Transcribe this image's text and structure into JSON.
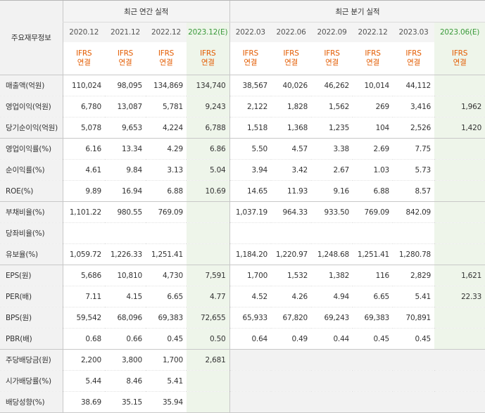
{
  "header": {
    "corner_label": "주요재무정보",
    "annual_group": "최근 연간 실적",
    "quarterly_group": "최근 분기 실적",
    "basis_line1": "IFRS",
    "basis_line2": "연결"
  },
  "periods": [
    {
      "label": "2020.12",
      "estimate": false
    },
    {
      "label": "2021.12",
      "estimate": false
    },
    {
      "label": "2022.12",
      "estimate": false
    },
    {
      "label": "2023.12(E)",
      "estimate": true
    },
    {
      "label": "2022.03",
      "estimate": false
    },
    {
      "label": "2022.06",
      "estimate": false
    },
    {
      "label": "2022.09",
      "estimate": false
    },
    {
      "label": "2022.12",
      "estimate": false
    },
    {
      "label": "2023.03",
      "estimate": false
    },
    {
      "label": "2023.06(E)",
      "estimate": true
    }
  ],
  "rows": [
    {
      "label": "매출액(억원)",
      "values": [
        "110,024",
        "98,095",
        "134,869",
        "134,740",
        "38,567",
        "40,026",
        "46,262",
        "10,014",
        "44,112",
        ""
      ]
    },
    {
      "label": "영업이익(억원)",
      "values": [
        "6,780",
        "13,087",
        "5,781",
        "9,243",
        "2,122",
        "1,828",
        "1,562",
        "269",
        "3,416",
        "1,962"
      ]
    },
    {
      "label": "당기순이익(억원)",
      "values": [
        "5,078",
        "9,653",
        "4,224",
        "6,788",
        "1,518",
        "1,368",
        "1,235",
        "104",
        "2,526",
        "1,420"
      ]
    },
    {
      "label": "영업이익률(%)",
      "values": [
        "6.16",
        "13.34",
        "4.29",
        "6.86",
        "5.50",
        "4.57",
        "3.38",
        "2.69",
        "7.75",
        ""
      ]
    },
    {
      "label": "순이익률(%)",
      "values": [
        "4.61",
        "9.84",
        "3.13",
        "5.04",
        "3.94",
        "3.42",
        "2.67",
        "1.03",
        "5.73",
        ""
      ]
    },
    {
      "label": "ROE(%)",
      "values": [
        "9.89",
        "16.94",
        "6.88",
        "10.69",
        "14.65",
        "11.93",
        "9.16",
        "6.88",
        "8.57",
        ""
      ]
    },
    {
      "label": "부채비율(%)",
      "values": [
        "1,101.22",
        "980.55",
        "769.09",
        "",
        "1,037.19",
        "964.33",
        "933.50",
        "769.09",
        "842.09",
        ""
      ]
    },
    {
      "label": "당좌비율(%)",
      "values": [
        "",
        "",
        "",
        "",
        "",
        "",
        "",
        "",
        "",
        ""
      ]
    },
    {
      "label": "유보율(%)",
      "values": [
        "1,059.72",
        "1,226.33",
        "1,251.41",
        "",
        "1,184.20",
        "1,220.97",
        "1,248.68",
        "1,251.41",
        "1,280.78",
        ""
      ]
    },
    {
      "label": "EPS(원)",
      "values": [
        "5,686",
        "10,810",
        "4,730",
        "7,591",
        "1,700",
        "1,532",
        "1,382",
        "116",
        "2,829",
        "1,621"
      ]
    },
    {
      "label": "PER(배)",
      "values": [
        "7.11",
        "4.15",
        "6.65",
        "4.77",
        "4.52",
        "4.26",
        "4.94",
        "6.65",
        "5.41",
        "22.33"
      ]
    },
    {
      "label": "BPS(원)",
      "values": [
        "59,542",
        "68,096",
        "69,383",
        "72,655",
        "65,933",
        "67,820",
        "69,243",
        "69,383",
        "70,891",
        ""
      ]
    },
    {
      "label": "PBR(배)",
      "values": [
        "0.68",
        "0.66",
        "0.45",
        "0.50",
        "0.64",
        "0.49",
        "0.44",
        "0.45",
        "0.45",
        ""
      ]
    },
    {
      "label": "주당배당금(원)",
      "values": [
        "2,200",
        "3,800",
        "1,700",
        "2,681",
        "",
        "",
        "",
        "",
        "",
        ""
      ]
    },
    {
      "label": "시가배당률(%)",
      "values": [
        "5.44",
        "8.46",
        "5.41",
        "",
        "",
        "",
        "",
        "",
        "",
        ""
      ]
    },
    {
      "label": "배당성향(%)",
      "values": [
        "38.69",
        "35.15",
        "35.94",
        "",
        "",
        "",
        "",
        "",
        "",
        ""
      ]
    }
  ],
  "colors": {
    "basis_text": "#e35b00",
    "estimate_bg": "#eef5ea",
    "estimate_date": "#3a9a3a",
    "label_bg": "#f2f2f2",
    "grid": "#c8c8c8"
  }
}
